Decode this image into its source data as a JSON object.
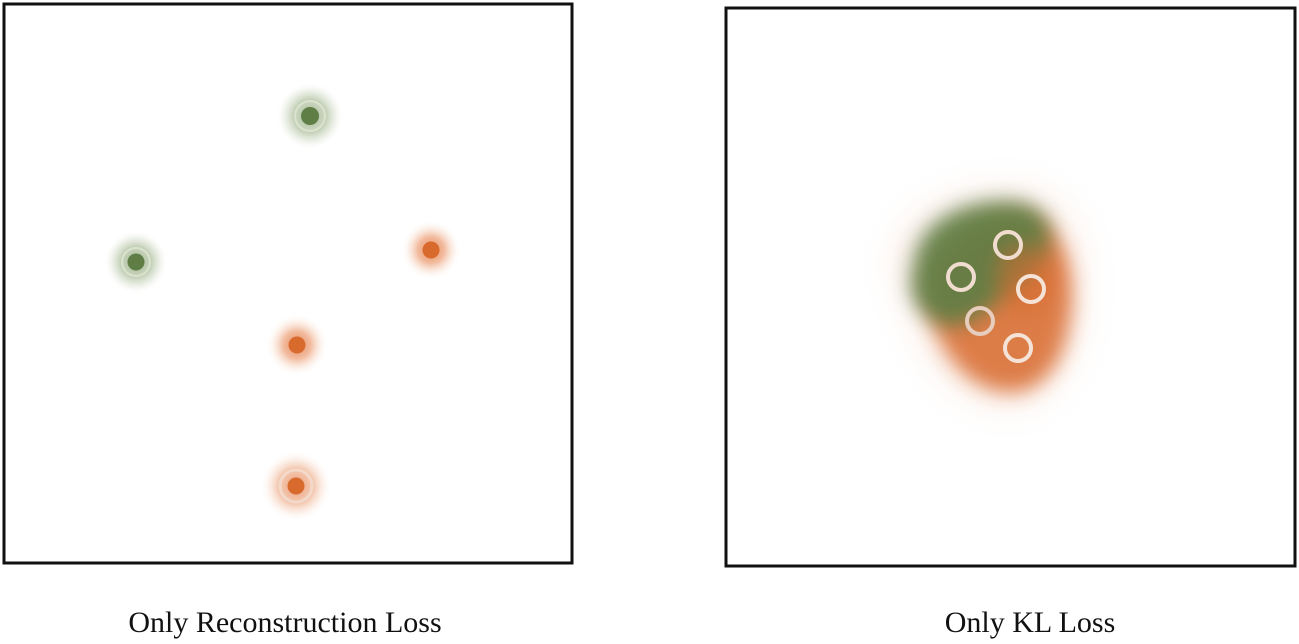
{
  "colors": {
    "green": "#5f7e45",
    "orange": "#d86a2e",
    "frame": "#111111",
    "ring": "#f0d8c8"
  },
  "panels": [
    {
      "caption": "Only Reconstruction Loss"
    },
    {
      "caption": "Only KL Loss"
    }
  ]
}
